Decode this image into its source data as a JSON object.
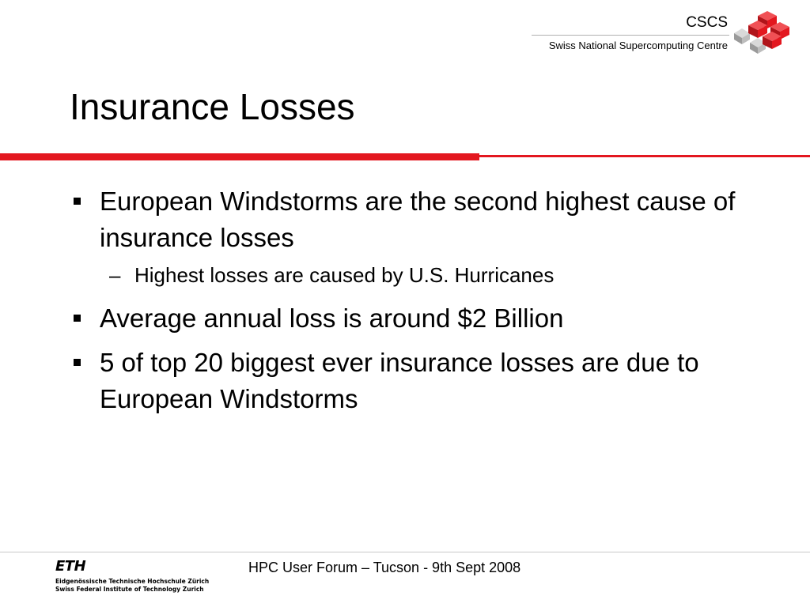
{
  "header": {
    "org_short": "CSCS",
    "org_full": "Swiss National Supercomputing Centre",
    "logo_icon": "cscs-cubes-logo-icon",
    "accent_color": "#e3171f"
  },
  "slide": {
    "title": "Insurance Losses",
    "bullets": [
      {
        "text": "European Windstorms are the second highest cause of insurance losses",
        "sub": "Highest losses are caused by U.S. Hurricanes"
      },
      {
        "text": "Average annual loss is around $2 Billion"
      },
      {
        "text": "5 of top 20 biggest ever insurance losses are due to European Windstorms"
      }
    ],
    "sub_marker": "–"
  },
  "footer": {
    "event": "HPC User Forum – Tucson - 9th Sept 2008",
    "institution_logo": "ETH",
    "institution_line1": "Eidgenössische Technische Hochschule Zürich",
    "institution_line2": "Swiss Federal Institute of Technology Zurich"
  }
}
